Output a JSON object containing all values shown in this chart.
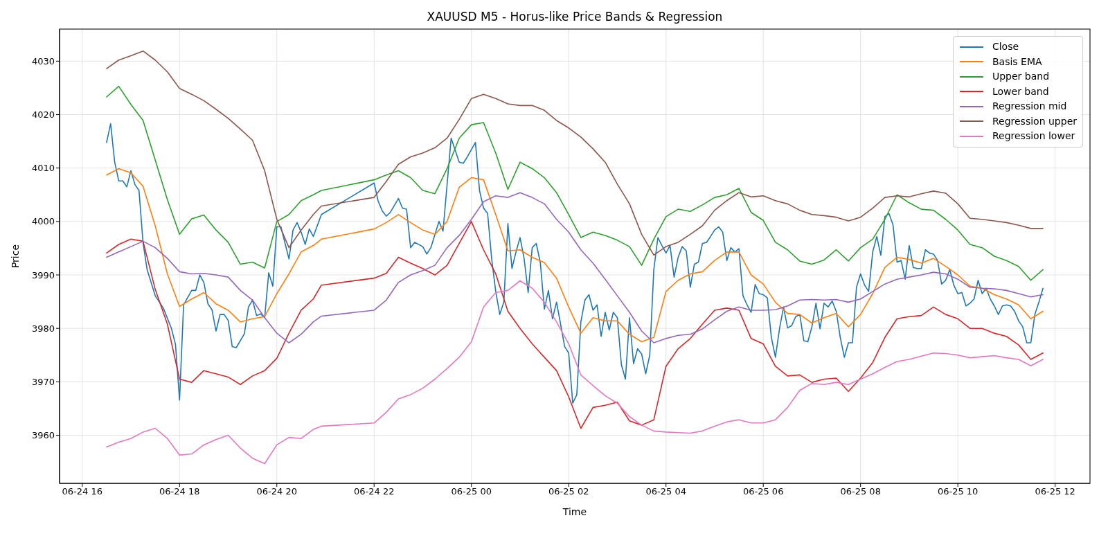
{
  "chart_data": {
    "type": "line",
    "title": "XAUUSD M5 - Horus-like Price Bands & Regression",
    "xlabel": "Time",
    "ylabel": "Price",
    "xlim": [
      "--06-24T15:32",
      "--06-25T12:43"
    ],
    "xticks": [
      {
        "value": "--06-24T16:00",
        "label": "06-24 16"
      },
      {
        "value": "--06-24T18:00",
        "label": "06-24 18"
      },
      {
        "value": "--06-24T20:00",
        "label": "06-24 20"
      },
      {
        "value": "--06-24T22:00",
        "label": "06-24 22"
      },
      {
        "value": "--06-25T00:00",
        "label": "06-25 00"
      },
      {
        "value": "--06-25T02:00",
        "label": "06-25 02"
      },
      {
        "value": "--06-25T04:00",
        "label": "06-25 04"
      },
      {
        "value": "--06-25T06:00",
        "label": "06-25 06"
      },
      {
        "value": "--06-25T08:00",
        "label": "06-25 08"
      },
      {
        "value": "--06-25T10:00",
        "label": "06-25 10"
      },
      {
        "value": "--06-25T12:00",
        "label": "06-25 12"
      }
    ],
    "ylim": [
      3951,
      4036
    ],
    "yticks": [
      3960,
      3970,
      3980,
      3990,
      4000,
      4010,
      4020,
      4030
    ],
    "grid": true,
    "legend": "top right",
    "x": [
      "--06-24T16:30",
      "--06-24T16:45",
      "--06-24T17:00",
      "--06-24T17:15",
      "--06-24T17:30",
      "--06-24T17:45",
      "--06-24T18:00",
      "--06-24T18:15",
      "--06-24T18:30",
      "--06-24T18:45",
      "--06-24T19:00",
      "--06-24T19:15",
      "--06-24T19:30",
      "--06-24T19:45",
      "--06-24T20:00",
      "--06-24T20:15",
      "--06-24T20:30",
      "--06-24T20:45",
      "--06-24T20:55",
      "--06-24T22:00",
      "--06-24T22:15",
      "--06-24T22:30",
      "--06-24T22:45",
      "--06-24T23:00",
      "--06-24T23:15",
      "--06-24T23:30",
      "--06-24T23:45",
      "--06-25T00:00",
      "--06-25T00:15",
      "--06-25T00:30",
      "--06-25T00:45",
      "--06-25T01:00",
      "--06-25T01:15",
      "--06-25T01:30",
      "--06-25T01:45",
      "--06-25T02:00",
      "--06-25T02:15",
      "--06-25T02:30",
      "--06-25T02:45",
      "--06-25T03:00",
      "--06-25T03:15",
      "--06-25T03:30",
      "--06-25T03:45",
      "--06-25T04:00",
      "--06-25T04:15",
      "--06-25T04:30",
      "--06-25T04:45",
      "--06-25T05:00",
      "--06-25T05:15",
      "--06-25T05:30",
      "--06-25T05:45",
      "--06-25T06:00",
      "--06-25T06:15",
      "--06-25T06:30",
      "--06-25T06:45",
      "--06-25T07:00",
      "--06-25T07:15",
      "--06-25T07:30",
      "--06-25T07:45",
      "--06-25T08:00",
      "--06-25T08:15",
      "--06-25T08:30",
      "--06-25T08:45",
      "--06-25T09:00",
      "--06-25T09:15",
      "--06-25T09:30",
      "--06-25T09:45",
      "--06-25T10:00",
      "--06-25T10:15",
      "--06-25T10:30",
      "--06-25T10:45",
      "--06-25T11:00",
      "--06-25T11:15",
      "--06-25T11:30",
      "--06-25T11:45"
    ],
    "series": [
      {
        "name": "Close",
        "color": "#1f77b4",
        "x": [
          "--06-24T16:30",
          "--06-24T16:35",
          "--06-24T16:40",
          "--06-24T16:45",
          "--06-24T16:50",
          "--06-24T16:55",
          "--06-24T17:00",
          "--06-24T17:05",
          "--06-24T17:10",
          "--06-24T17:15",
          "--06-24T17:20",
          "--06-24T17:30",
          "--06-24T17:40",
          "--06-24T17:50",
          "--06-24T17:55",
          "--06-24T18:00",
          "--06-24T18:05",
          "--06-24T18:15",
          "--06-24T18:20",
          "--06-24T18:25",
          "--06-24T18:30",
          "--06-24T18:35",
          "--06-24T18:40",
          "--06-24T18:45",
          "--06-24T18:50",
          "--06-24T18:55",
          "--06-24T19:00",
          "--06-24T19:05",
          "--06-24T19:10",
          "--06-24T19:20",
          "--06-24T19:25",
          "--06-24T19:30",
          "--06-24T19:35",
          "--06-24T19:40",
          "--06-24T19:45",
          "--06-24T19:50",
          "--06-24T19:55",
          "--06-24T20:00",
          "--06-24T20:05",
          "--06-24T20:10",
          "--06-24T20:15",
          "--06-24T20:20",
          "--06-24T20:25",
          "--06-24T20:30",
          "--06-24T20:35",
          "--06-24T20:40",
          "--06-24T20:45",
          "--06-24T20:55",
          "--06-24T22:00",
          "--06-24T22:05",
          "--06-24T22:10",
          "--06-24T22:15",
          "--06-24T22:20",
          "--06-24T22:30",
          "--06-24T22:35",
          "--06-24T22:40",
          "--06-24T22:45",
          "--06-24T22:50",
          "--06-24T23:00",
          "--06-24T23:05",
          "--06-24T23:10",
          "--06-24T23:20",
          "--06-24T23:25",
          "--06-24T23:35",
          "--06-24T23:45",
          "--06-24T23:50",
          "--06-24T23:55",
          "--06-25T00:05",
          "--06-25T00:10",
          "--06-25T00:15",
          "--06-25T00:20",
          "--06-25T00:25",
          "--06-25T00:30",
          "--06-25T00:35",
          "--06-25T00:40",
          "--06-25T00:45",
          "--06-25T00:50",
          "--06-25T00:55",
          "--06-25T01:00",
          "--06-25T01:05",
          "--06-25T01:10",
          "--06-25T01:15",
          "--06-25T01:20",
          "--06-25T01:25",
          "--06-25T01:30",
          "--06-25T01:35",
          "--06-25T01:40",
          "--06-25T01:45",
          "--06-25T01:50",
          "--06-25T01:55",
          "--06-25T02:00",
          "--06-25T02:05",
          "--06-25T02:10",
          "--06-25T02:15",
          "--06-25T02:20",
          "--06-25T02:25",
          "--06-25T02:30",
          "--06-25T02:35",
          "--06-25T02:40",
          "--06-25T02:45",
          "--06-25T02:50",
          "--06-25T02:55",
          "--06-25T03:00",
          "--06-25T03:05",
          "--06-25T03:10",
          "--06-25T03:15",
          "--06-25T03:20",
          "--06-25T03:25",
          "--06-25T03:30",
          "--06-25T03:35",
          "--06-25T03:40",
          "--06-25T03:45",
          "--06-25T03:50",
          "--06-25T03:55",
          "--06-25T04:00",
          "--06-25T04:05",
          "--06-25T04:10",
          "--06-25T04:15",
          "--06-25T04:20",
          "--06-25T04:25",
          "--06-25T04:30",
          "--06-25T04:35",
          "--06-25T04:40",
          "--06-25T04:45",
          "--06-25T04:50",
          "--06-25T04:55",
          "--06-25T05:00",
          "--06-25T05:05",
          "--06-25T05:10",
          "--06-25T05:15",
          "--06-25T05:20",
          "--06-25T05:25",
          "--06-25T05:30",
          "--06-25T05:35",
          "--06-25T05:40",
          "--06-25T05:45",
          "--06-25T05:50",
          "--06-25T05:55",
          "--06-25T06:00",
          "--06-25T06:05",
          "--06-25T06:10",
          "--06-25T06:15",
          "--06-25T06:20",
          "--06-25T06:25",
          "--06-25T06:30",
          "--06-25T06:35",
          "--06-25T06:40",
          "--06-25T06:45",
          "--06-25T06:50",
          "--06-25T06:55",
          "--06-25T07:00",
          "--06-25T07:05",
          "--06-25T07:10",
          "--06-25T07:15",
          "--06-25T07:20",
          "--06-25T07:25",
          "--06-25T07:30",
          "--06-25T07:35",
          "--06-25T07:40",
          "--06-25T07:45",
          "--06-25T07:50",
          "--06-25T07:55",
          "--06-25T08:00",
          "--06-25T08:05",
          "--06-25T08:10",
          "--06-25T08:15",
          "--06-25T08:20",
          "--06-25T08:25",
          "--06-25T08:30",
          "--06-25T08:35",
          "--06-25T08:40",
          "--06-25T08:45",
          "--06-25T08:50",
          "--06-25T08:55",
          "--06-25T09:00",
          "--06-25T09:05",
          "--06-25T09:10",
          "--06-25T09:15",
          "--06-25T09:20",
          "--06-25T09:25",
          "--06-25T09:30",
          "--06-25T09:35",
          "--06-25T09:40",
          "--06-25T09:45",
          "--06-25T09:50",
          "--06-25T09:55",
          "--06-25T10:00",
          "--06-25T10:05",
          "--06-25T10:10",
          "--06-25T10:15",
          "--06-25T10:20",
          "--06-25T10:25",
          "--06-25T10:30",
          "--06-25T10:35",
          "--06-25T10:40",
          "--06-25T10:45",
          "--06-25T10:50",
          "--06-25T10:55",
          "--06-25T11:00",
          "--06-25T11:05",
          "--06-25T11:10",
          "--06-25T11:15",
          "--06-25T11:20",
          "--06-25T11:25",
          "--06-25T11:30",
          "--06-25T11:35",
          "--06-25T11:40",
          "--06-25T11:45"
        ],
        "values": [
          4014.8,
          4018.3,
          4011.1,
          4007.6,
          4007.6,
          4006.5,
          4009.5,
          4006.9,
          4005.8,
          3996,
          3991,
          3986.1,
          3983.8,
          3980,
          3977,
          3966.6,
          3984.4,
          3987.1,
          3987.1,
          3990,
          3988.6,
          3984.6,
          3983.5,
          3979.5,
          3982.6,
          3982.6,
          3981.5,
          3976.6,
          3976.4,
          3979,
          3984,
          3985.3,
          3982.4,
          3982.7,
          3982,
          3990.4,
          3987.9,
          3999,
          3999,
          3996,
          3993,
          3998.4,
          3999.8,
          3998,
          3995.7,
          3998.6,
          3997.2,
          4001.3,
          4007.2,
          4003.8,
          4002,
          4001,
          4001.7,
          4004.3,
          4002.5,
          4002.3,
          3995.1,
          3996.1,
          3995.3,
          3993.9,
          3995.1,
          4000,
          3998.2,
          4015.6,
          4011.1,
          4010.9,
          4012.1,
          4014.8,
          4005.8,
          4002.5,
          4001.5,
          3993,
          3986.9,
          3982.6,
          3984.9,
          3999.6,
          3991.2,
          3994.3,
          3997,
          3993.1,
          3986.7,
          3995.1,
          3995.9,
          3992.3,
          3983.6,
          3987.1,
          3981.8,
          3984.9,
          3980.8,
          3976.6,
          3975.4,
          3966,
          3967.6,
          3981.2,
          3985.3,
          3986.3,
          3983.4,
          3984.4,
          3978.5,
          3983,
          3979.7,
          3983,
          3982,
          3973.2,
          3970.5,
          3982,
          3973.4,
          3976.2,
          3975.2,
          3971.5,
          3975,
          3991,
          3997,
          3995.5,
          3994.1,
          3995.5,
          3989.6,
          3993.3,
          3995.3,
          3994.5,
          3987.7,
          3992,
          3992.4,
          3995.9,
          3996.1,
          3997.2,
          3998.4,
          3999,
          3998,
          3992.7,
          3995.1,
          3994.3,
          3994.9,
          3986.1,
          3984.4,
          3983,
          3988.2,
          3986.5,
          3986.3,
          3985.7,
          3978.3,
          3974.6,
          3979.9,
          3984,
          3980.1,
          3980.5,
          3982.2,
          3982.6,
          3977.7,
          3977.5,
          3980.3,
          3984.7,
          3979.9,
          3984.7,
          3984,
          3985.1,
          3983.2,
          3978.3,
          3974.6,
          3977.3,
          3977.3,
          3987.7,
          3990.2,
          3988.1,
          3986.9,
          3994.3,
          3997.2,
          3993.7,
          4000.9,
          4001.5,
          3999.4,
          3992.4,
          3992.7,
          3989.2,
          3995.5,
          3991.4,
          3991.2,
          3991.2,
          3994.7,
          3994.1,
          3993.9,
          3992.7,
          3988.3,
          3989,
          3991,
          3988.1,
          3986.5,
          3986.7,
          3984.2,
          3984.7,
          3985.5,
          3989,
          3986.5,
          3987.5,
          3985.5,
          3984.2,
          3982.6,
          3984.2,
          3984.4,
          3984.2,
          3983.2,
          3981.4,
          3980.3,
          3977.3,
          3977.3,
          3982.6,
          3984.9,
          3987.5
        ]
      },
      {
        "name": "Basis EMA",
        "color": "#ff7f0e",
        "values": [
          4008.7,
          4009.9,
          4009.1,
          4006.6,
          3999.2,
          3990.2,
          3984.1,
          3985.5,
          3986.7,
          3984.6,
          3983.4,
          3981.2,
          3981.8,
          3982.2,
          3986.5,
          3990.2,
          3994.3,
          3995.5,
          3996.7,
          3998.6,
          3999.8,
          4001.3,
          3999.8,
          3998.4,
          3997.6,
          4000.0,
          4006.4,
          4008.2,
          4007.8,
          4001.3,
          3994.5,
          3994.7,
          3993.3,
          3992.3,
          3989.4,
          3984.0,
          3979.1,
          3982.0,
          3981.4,
          3981.4,
          3978.9,
          3977.5,
          3978.3,
          3986.9,
          3989.0,
          3990.2,
          3990.6,
          3992.7,
          3994.3,
          3994.3,
          3990.0,
          3988.3,
          3984.9,
          3982.8,
          3982.6,
          3981.0,
          3982.0,
          3982.8,
          3980.3,
          3982.6,
          3986.5,
          3991.4,
          3993.3,
          3992.9,
          3992.2,
          3993.1,
          3991.6,
          3990.0,
          3987.9,
          3987.5,
          3986.3,
          3985.5,
          3984.4,
          3981.8,
          3983.2
        ]
      },
      {
        "name": "Upper band",
        "color": "#2ca02c",
        "values": [
          4023.3,
          4025.3,
          4021.9,
          4018.9,
          4011.5,
          4004.1,
          3997.6,
          4000.5,
          4001.2,
          3998.4,
          3996.1,
          3992.0,
          3992.4,
          3991.3,
          4000.0,
          4001.3,
          4003.9,
          4005.0,
          4005.8,
          4007.8,
          4008.7,
          4009.5,
          4008.2,
          4005.8,
          4005.2,
          4009.9,
          4015.6,
          4018.1,
          4018.5,
          4012.8,
          4006.0,
          4011.1,
          4009.9,
          4008.2,
          4005.4,
          4001.3,
          3997.0,
          3998.0,
          3997.4,
          3996.5,
          3995.3,
          3991.8,
          3996.7,
          4000.9,
          4002.3,
          4001.9,
          4003.1,
          4004.5,
          4005.0,
          4006.2,
          4001.7,
          4000.2,
          3996.1,
          3994.7,
          3992.6,
          3992.0,
          3992.8,
          3994.7,
          3992.6,
          3995.1,
          3996.7,
          4000.4,
          4005.0,
          4003.5,
          4002.3,
          4002.1,
          4000.4,
          3998.4,
          3995.7,
          3995.1,
          3993.5,
          3992.7,
          3991.6,
          3989.0,
          3991.0
        ]
      },
      {
        "name": "Lower band",
        "color": "#d62728",
        "values": [
          3994.1,
          3995.7,
          3996.7,
          3996.3,
          3987.3,
          3980.8,
          3970.5,
          3969.9,
          3972.1,
          3971.5,
          3970.9,
          3969.5,
          3971.1,
          3972.1,
          3974.4,
          3979.1,
          3983.4,
          3985.5,
          3988.1,
          3989.4,
          3990.3,
          3993.3,
          3992.2,
          3991.2,
          3990.0,
          3991.8,
          3995.9,
          4000.0,
          3994.7,
          3990.2,
          3983.2,
          3980.0,
          3977.1,
          3974.6,
          3972.1,
          3967.2,
          3961.3,
          3965.2,
          3965.6,
          3966.2,
          3962.7,
          3961.9,
          3962.9,
          3972.9,
          3976.2,
          3978.1,
          3980.8,
          3983.4,
          3983.8,
          3983.4,
          3978.1,
          3977.1,
          3972.9,
          3971.1,
          3971.3,
          3969.9,
          3970.5,
          3970.7,
          3968.2,
          3970.7,
          3973.6,
          3978.3,
          3981.8,
          3982.2,
          3982.4,
          3984.0,
          3982.6,
          3981.8,
          3980.0,
          3980.0,
          3979.1,
          3978.5,
          3976.9,
          3974.2,
          3975.4
        ]
      },
      {
        "name": "Regression mid",
        "color": "#9467bd",
        "values": [
          3993.3,
          3994.3,
          3995.3,
          3996.3,
          3995.1,
          3993.1,
          3990.6,
          3990.2,
          3990.3,
          3990.0,
          3989.6,
          3987.1,
          3985.3,
          3982.0,
          3979.1,
          3977.3,
          3978.9,
          3981.2,
          3982.3,
          3983.4,
          3985.3,
          3988.6,
          3990.0,
          3990.8,
          3991.8,
          3995.1,
          3997.4,
          4000.4,
          4003.7,
          4004.8,
          4004.5,
          4005.4,
          4004.5,
          4003.3,
          4000.4,
          3998.0,
          3994.7,
          3992.2,
          3989.2,
          3986.1,
          3983.0,
          3979.5,
          3977.3,
          3978.1,
          3978.7,
          3978.9,
          3979.9,
          3981.6,
          3983.2,
          3984.0,
          3983.4,
          3983.4,
          3983.5,
          3984.2,
          3985.3,
          3985.4,
          3985.3,
          3985.4,
          3984.9,
          3985.5,
          3986.9,
          3988.3,
          3989.2,
          3989.6,
          3990.0,
          3990.5,
          3990.2,
          3989.2,
          3987.7,
          3987.5,
          3987.4,
          3987.1,
          3986.5,
          3985.9,
          3986.3
        ]
      },
      {
        "name": "Regression upper",
        "color": "#8c564b",
        "values": [
          4028.6,
          4030.2,
          4031.0,
          4031.9,
          4030.2,
          4028.0,
          4024.9,
          4023.8,
          4022.6,
          4021.0,
          4019.3,
          4017.3,
          4015.2,
          4009.5,
          4000.4,
          3995.1,
          3998.4,
          4001.3,
          4002.9,
          4004.5,
          4007.5,
          4010.7,
          4012.1,
          4012.8,
          4013.8,
          4015.6,
          4019.1,
          4023.0,
          4023.8,
          4023.0,
          4022.0,
          4021.7,
          4021.7,
          4020.8,
          4018.9,
          4017.5,
          4015.8,
          4013.6,
          4011.1,
          4007.0,
          4003.3,
          3997.6,
          3993.7,
          3995.3,
          3996.1,
          3997.6,
          3999.2,
          4002.1,
          4003.9,
          4005.4,
          4004.6,
          4004.8,
          4003.9,
          4003.3,
          4002.1,
          4001.3,
          4001.1,
          4000.8,
          4000.1,
          4000.8,
          4002.5,
          4004.5,
          4004.8,
          4004.6,
          4005.2,
          4005.7,
          4005.3,
          4003.3,
          4000.6,
          4000.4,
          4000.1,
          3999.8,
          3999.3,
          3998.7,
          3998.7
        ]
      },
      {
        "name": "Regression lower",
        "color": "#e377c2",
        "values": [
          3957.8,
          3958.7,
          3959.4,
          3960.6,
          3961.3,
          3959.4,
          3956.3,
          3956.5,
          3958.2,
          3959.2,
          3960.0,
          3957.6,
          3955.7,
          3954.7,
          3958.2,
          3959.6,
          3959.4,
          3961.1,
          3961.7,
          3962.3,
          3964.3,
          3966.8,
          3967.6,
          3968.8,
          3970.5,
          3972.5,
          3974.6,
          3977.5,
          3984.0,
          3986.7,
          3987.1,
          3988.9,
          3987.5,
          3984.9,
          3981.2,
          3977.1,
          3971.3,
          3969.3,
          3967.4,
          3966.0,
          3963.5,
          3961.9,
          3960.8,
          3960.6,
          3960.5,
          3960.4,
          3960.8,
          3961.7,
          3962.5,
          3962.9,
          3962.3,
          3962.3,
          3962.9,
          3965.2,
          3968.4,
          3969.7,
          3969.5,
          3969.9,
          3969.5,
          3970.5,
          3971.5,
          3972.7,
          3973.8,
          3974.2,
          3974.8,
          3975.4,
          3975.3,
          3975.0,
          3974.5,
          3974.7,
          3974.9,
          3974.5,
          3974.2,
          3973.0,
          3974.2
        ]
      }
    ]
  }
}
